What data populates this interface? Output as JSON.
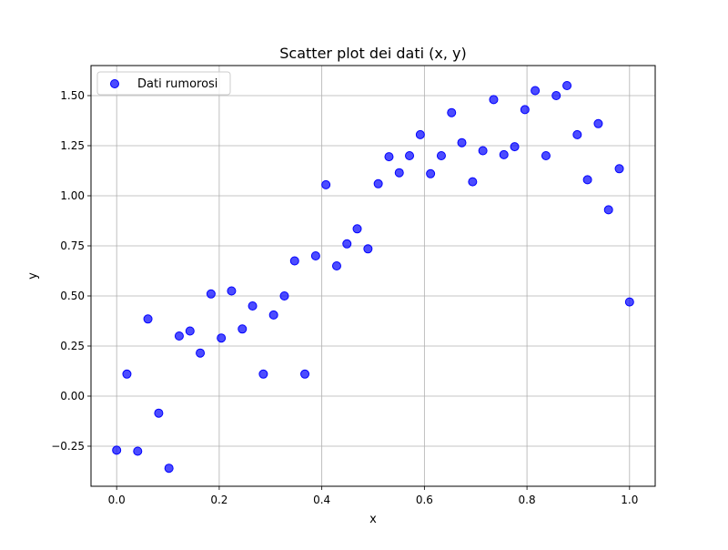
{
  "chart_data": {
    "type": "scatter",
    "title": "Scatter plot dei dati (x, y)",
    "xlabel": "x",
    "ylabel": "y",
    "xlim": [
      -0.05,
      1.05
    ],
    "ylim": [
      -0.45,
      1.65
    ],
    "grid": true,
    "legend": {
      "position": "top-left",
      "entries": [
        "Dati rumorosi"
      ]
    },
    "x_ticks": [
      {
        "value": 0.0,
        "label": "0.0"
      },
      {
        "value": 0.2,
        "label": "0.2"
      },
      {
        "value": 0.4,
        "label": "0.4"
      },
      {
        "value": 0.6,
        "label": "0.6"
      },
      {
        "value": 0.8,
        "label": "0.8"
      },
      {
        "value": 1.0,
        "label": "1.0"
      }
    ],
    "y_ticks": [
      {
        "value": -0.25,
        "label": "−0.25"
      },
      {
        "value": 0.0,
        "label": "0.00"
      },
      {
        "value": 0.25,
        "label": "0.25"
      },
      {
        "value": 0.5,
        "label": "0.50"
      },
      {
        "value": 0.75,
        "label": "0.75"
      },
      {
        "value": 1.0,
        "label": "1.00"
      },
      {
        "value": 1.25,
        "label": "1.25"
      },
      {
        "value": 1.5,
        "label": "1.50"
      }
    ],
    "series": [
      {
        "name": "Dati rumorosi",
        "color": "#0000ff",
        "points": [
          [
            0.0,
            -0.27
          ],
          [
            0.02,
            0.11
          ],
          [
            0.041,
            -0.275
          ],
          [
            0.061,
            0.385
          ],
          [
            0.082,
            -0.085
          ],
          [
            0.102,
            -0.36
          ],
          [
            0.122,
            0.3
          ],
          [
            0.143,
            0.325
          ],
          [
            0.163,
            0.215
          ],
          [
            0.184,
            0.51
          ],
          [
            0.204,
            0.29
          ],
          [
            0.224,
            0.525
          ],
          [
            0.245,
            0.335
          ],
          [
            0.265,
            0.45
          ],
          [
            0.286,
            0.11
          ],
          [
            0.306,
            0.405
          ],
          [
            0.327,
            0.5
          ],
          [
            0.347,
            0.675
          ],
          [
            0.367,
            0.11
          ],
          [
            0.388,
            0.7
          ],
          [
            0.408,
            1.055
          ],
          [
            0.429,
            0.65
          ],
          [
            0.449,
            0.76
          ],
          [
            0.469,
            0.835
          ],
          [
            0.49,
            0.735
          ],
          [
            0.51,
            1.06
          ],
          [
            0.531,
            1.195
          ],
          [
            0.551,
            1.115
          ],
          [
            0.571,
            1.2
          ],
          [
            0.592,
            1.305
          ],
          [
            0.612,
            1.11
          ],
          [
            0.633,
            1.2
          ],
          [
            0.653,
            1.415
          ],
          [
            0.673,
            1.265
          ],
          [
            0.694,
            1.07
          ],
          [
            0.714,
            1.225
          ],
          [
            0.735,
            1.48
          ],
          [
            0.755,
            1.205
          ],
          [
            0.776,
            1.245
          ],
          [
            0.796,
            1.43
          ],
          [
            0.816,
            1.525
          ],
          [
            0.837,
            1.2
          ],
          [
            0.857,
            1.5
          ],
          [
            0.878,
            1.55
          ],
          [
            0.898,
            1.305
          ],
          [
            0.918,
            1.08
          ],
          [
            0.939,
            1.36
          ],
          [
            0.959,
            0.93
          ],
          [
            0.98,
            1.135
          ],
          [
            1.0,
            0.47
          ]
        ]
      }
    ]
  }
}
